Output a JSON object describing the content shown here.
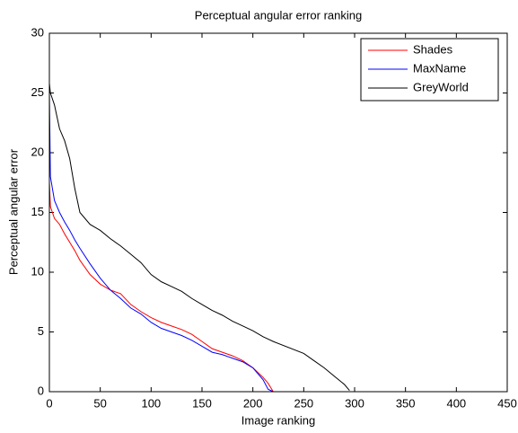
{
  "chart_data": {
    "type": "line",
    "title": "Perceptual angular error ranking",
    "xlabel": "Image ranking",
    "ylabel": "Perceptual angular error",
    "x": [
      0,
      1,
      5,
      10,
      15,
      20,
      25,
      30,
      40,
      50,
      60,
      70,
      80,
      90,
      100,
      110,
      120,
      130,
      140,
      150,
      160,
      170,
      180,
      190,
      200,
      210,
      215,
      220,
      250,
      260,
      270,
      280,
      290,
      295,
      300,
      330
    ],
    "series": [
      {
        "name": "Shades",
        "color": "#ff0000",
        "values": [
          17.5,
          15.5,
          14.5,
          14,
          13.2,
          12.5,
          11.8,
          11,
          9.8,
          9,
          8.5,
          8.2,
          7.3,
          6.7,
          6.2,
          5.8,
          5.5,
          5.2,
          4.8,
          4.2,
          3.6,
          3.3,
          3,
          2.6,
          2,
          1.2,
          0.7,
          0,
          0,
          0,
          0,
          0,
          0,
          0,
          0,
          null
        ]
      },
      {
        "name": "MaxName",
        "color": "#0000ff",
        "values": [
          25,
          18,
          16,
          15,
          14.2,
          13.5,
          12.7,
          12,
          10.7,
          9.5,
          8.5,
          7.8,
          7,
          6.5,
          5.8,
          5.3,
          5,
          4.7,
          4.3,
          3.8,
          3.3,
          3.1,
          2.8,
          2.5,
          2,
          1,
          0.2,
          0,
          0,
          0,
          0,
          0,
          0,
          0,
          0,
          0
        ]
      },
      {
        "name": "GreyWorld",
        "color": "#000000",
        "values": [
          25.8,
          25,
          24,
          22,
          21,
          19.5,
          17,
          15,
          14,
          13.5,
          12.8,
          12.2,
          11.5,
          10.8,
          9.8,
          9.2,
          8.8,
          8.4,
          7.8,
          7.3,
          6.8,
          6.4,
          5.9,
          5.5,
          5.1,
          4.6,
          4.4,
          4.2,
          3.2,
          2.6,
          2,
          1.3,
          0.6,
          0.1,
          null,
          null
        ]
      }
    ],
    "xlim": [
      0,
      450
    ],
    "xticks": [
      0,
      50,
      100,
      150,
      200,
      250,
      300,
      350,
      400,
      450
    ],
    "ylim": [
      0,
      30
    ],
    "yticks": [
      0,
      5,
      10,
      15,
      20,
      25,
      30
    ],
    "grid": false,
    "legend": "upper right"
  }
}
